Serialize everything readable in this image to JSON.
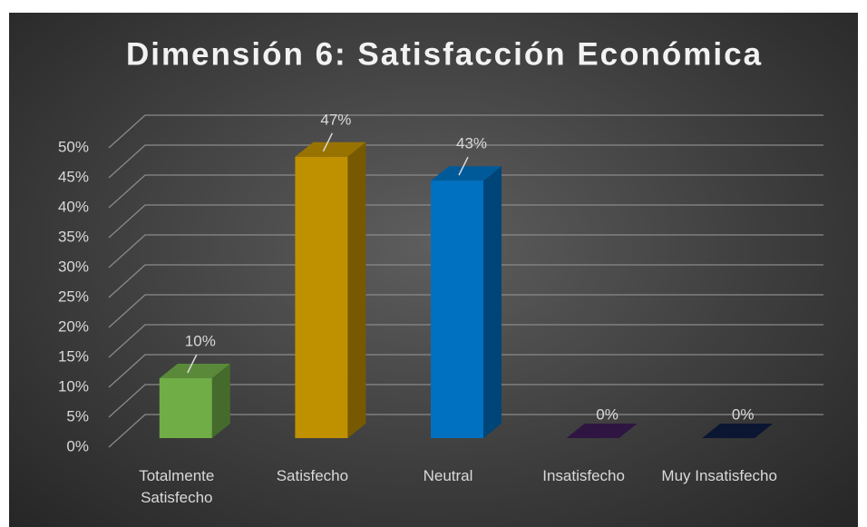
{
  "chart_data": {
    "type": "bar3d",
    "title": "Dimensión 6: Satisfacción Económica",
    "categories": [
      "Totalmente Satisfecho",
      "Satisfecho",
      "Neutral",
      "Insatisfecho",
      "Muy Insatisfecho"
    ],
    "values": [
      10,
      47,
      43,
      0,
      0
    ],
    "value_labels": [
      "10%",
      "47%",
      "43%",
      "0%",
      "0%"
    ],
    "colors": [
      "#70ad47",
      "#bf9000",
      "#0070c0",
      "#3b1a52",
      "#0d1b3e"
    ],
    "ylim": [
      0,
      50
    ],
    "yticks": [
      {
        "value": 0,
        "label": "0%"
      },
      {
        "value": 5,
        "label": "5%"
      },
      {
        "value": 10,
        "label": "10%"
      },
      {
        "value": 15,
        "label": "15%"
      },
      {
        "value": 20,
        "label": "20%"
      },
      {
        "value": 25,
        "label": "25%"
      },
      {
        "value": 30,
        "label": "30%"
      },
      {
        "value": 35,
        "label": "35%"
      },
      {
        "value": 40,
        "label": "40%"
      },
      {
        "value": 45,
        "label": "45%"
      },
      {
        "value": 50,
        "label": "50%"
      }
    ],
    "grid": true
  }
}
